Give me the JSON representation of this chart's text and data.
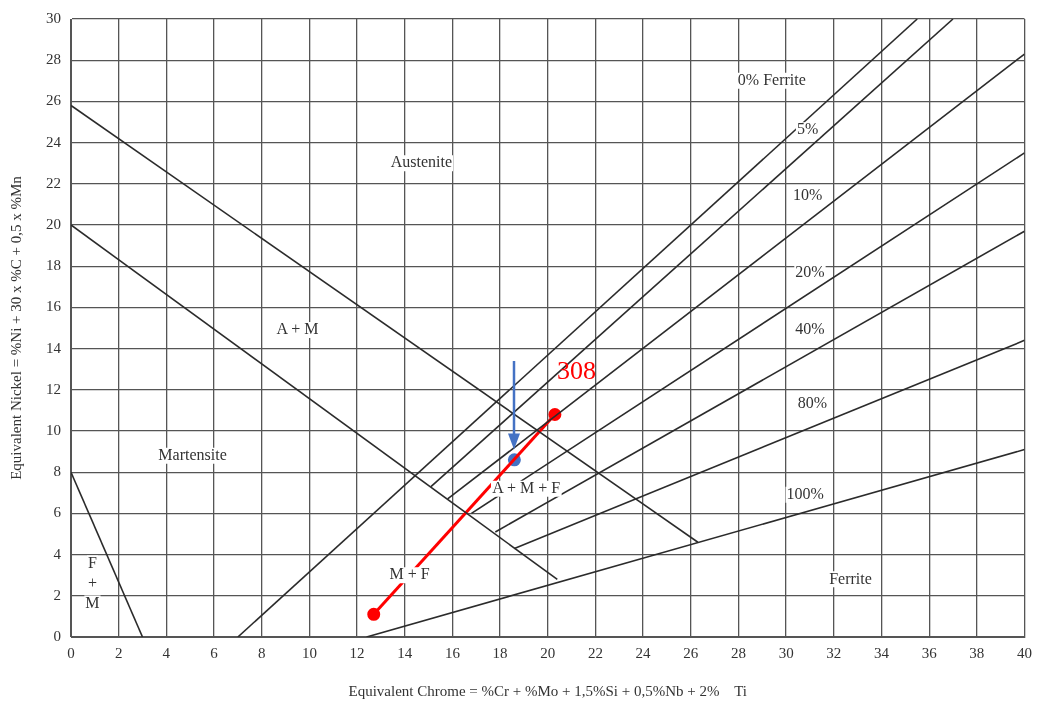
{
  "chart_data": {
    "type": "line",
    "xlabel": "Equivalent Chrome = %Cr + %Mo + 1,5%Si + 0,5%Nb + 2%    Ti",
    "ylabel": "Equivalent Nickel = %Ni + 30 x %C + 0,5 x %Mn",
    "xlim": [
      0,
      40
    ],
    "xticks": [
      0,
      2,
      4,
      6,
      8,
      10,
      12,
      14,
      16,
      18,
      20,
      22,
      24,
      26,
      28,
      30,
      32,
      34,
      36,
      38,
      40
    ],
    "ylim": [
      0,
      30
    ],
    "yticks": [
      0,
      2,
      4,
      6,
      8,
      10,
      12,
      14,
      16,
      18,
      20,
      22,
      24,
      26,
      28,
      30
    ],
    "grid": true,
    "marker": "none",
    "series": [
      {
        "color": "#2b2b2b",
        "x": [
          0,
          3
        ],
        "values": [
          8,
          0
        ]
      },
      {
        "color": "#2b2b2b",
        "x": [
          0,
          20.4
        ],
        "values": [
          20,
          2.8
        ]
      },
      {
        "color": "#2b2b2b",
        "x": [
          0,
          26.3
        ],
        "values": [
          25.8,
          4.6
        ]
      },
      {
        "color": "#2b2b2b",
        "x": [
          7,
          35.5
        ],
        "values": [
          0,
          30
        ]
      },
      {
        "color": "#2b2b2b",
        "x": [
          15.1,
          37
        ],
        "values": [
          7.3,
          30
        ]
      },
      {
        "color": "#2b2b2b",
        "x": [
          15.8,
          40
        ],
        "values": [
          6.7,
          28.3
        ]
      },
      {
        "color": "#2b2b2b",
        "x": [
          16.8,
          40
        ],
        "values": [
          6,
          23.5
        ]
      },
      {
        "color": "#2b2b2b",
        "x": [
          17.8,
          40
        ],
        "values": [
          5.1,
          19.7
        ]
      },
      {
        "color": "#2b2b2b",
        "x": [
          18.6,
          40
        ],
        "values": [
          4.3,
          14.4
        ]
      },
      {
        "color": "#2b2b2b",
        "x": [
          12.4,
          40
        ],
        "values": [
          0,
          9.1
        ]
      },
      {
        "name": "308",
        "color": "#ff0000",
        "marker": "circle",
        "x": [
          12.7,
          20.3
        ],
        "values": [
          1.1,
          10.8
        ]
      },
      {
        "type": "scatter",
        "color": "#4472c4",
        "marker": "circle",
        "x": [
          18.6
        ],
        "values": [
          8.6
        ]
      }
    ],
    "annotations": [
      "0% Ferrite",
      "Ferrite",
      "Austenite",
      "A + M",
      "Martensite",
      "A + M + F",
      {
        "text": "5%",
        "x": 30.9,
        "y": 24.6
      },
      {
        "text": "10%",
        "x": 30.9,
        "y": 21.4
      },
      {
        "text": "20%",
        "x": 31,
        "y": 17.7
      },
      {
        "text": "40%",
        "x": 31,
        "y": 14.9
      },
      {
        "text": "80%",
        "x": 31.1,
        "y": 11.3
      },
      {
        "text": "100%",
        "x": 30.8,
        "y": 6.9
      },
      {
        "text": "M + F",
        "x": 14.2,
        "y": 3
      },
      {
        "text": "F\n+\nM",
        "x": 0.9,
        "y": 2.6
      }
    ]
  }
}
